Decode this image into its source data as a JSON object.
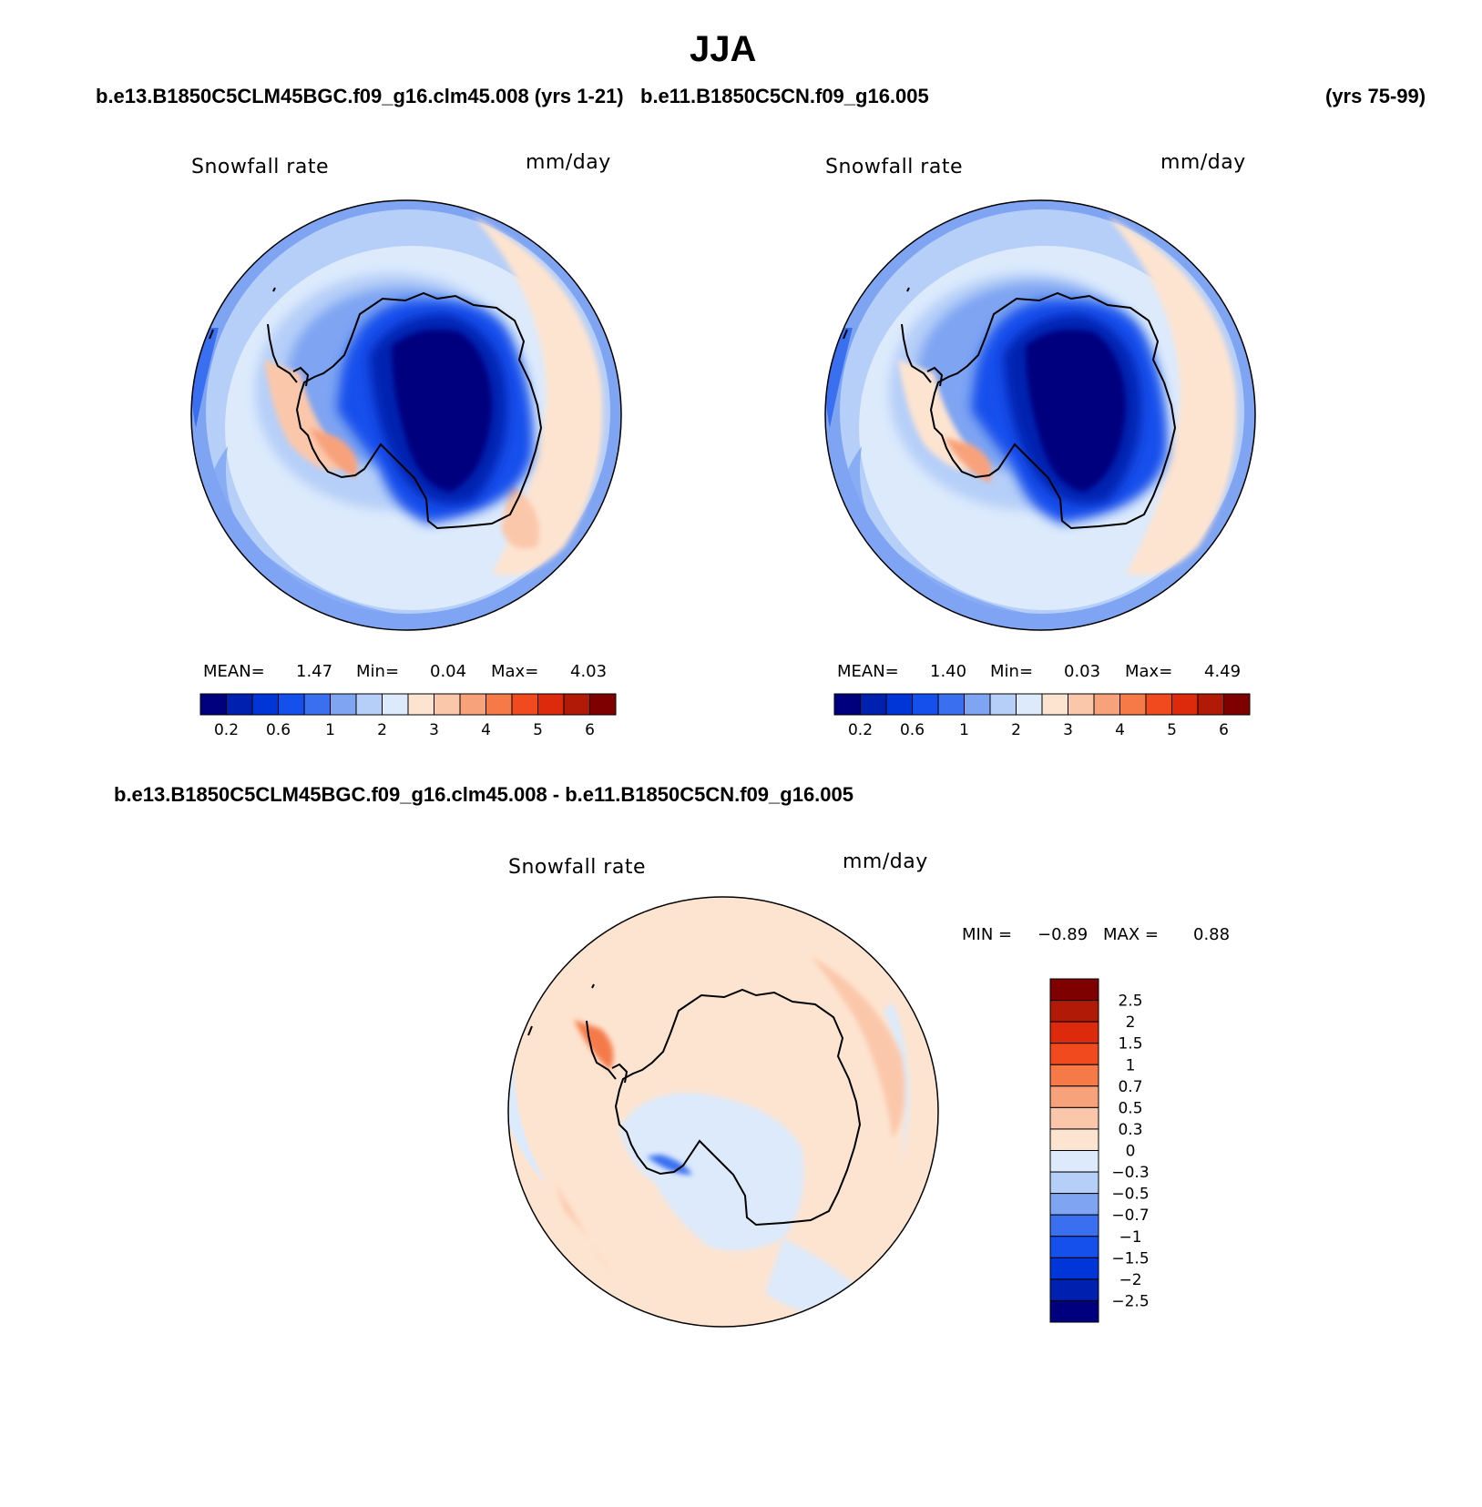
{
  "figure": {
    "title": "JJA",
    "top_left_case": "b.e13.B1850C5CLM45BGC.f09_g16.clm45.008 (yrs 1-21)",
    "top_right_case": "b.e11.B1850C5CN.f09_g16.005",
    "top_right_years": "(yrs 75-99)",
    "diff_case": "b.e13.B1850C5CLM45BGC.f09_g16.clm45.008 - b.e11.B1850C5CN.f09_g16.005"
  },
  "chart_data": [
    {
      "type": "heatmap",
      "projection": "south-polar-stereographic",
      "variable": "Snowfall rate",
      "units": "mm/day",
      "stats": {
        "mean_label": "MEAN=",
        "mean": "1.47",
        "min_label": "Min=",
        "min": "0.04",
        "max_label": "Max=",
        "max": "4.03"
      },
      "colorbar": {
        "orientation": "horizontal",
        "ticks": [
          "0.2",
          "0.6",
          "1",
          "2",
          "3",
          "4",
          "5",
          "6"
        ],
        "colors": [
          "#00007f",
          "#0020b0",
          "#0035d8",
          "#1550ec",
          "#3a70f0",
          "#7ea4f2",
          "#b6cff8",
          "#dceafc",
          "#fde4d0",
          "#fbc7ab",
          "#f8a27c",
          "#f57a48",
          "#f04a1e",
          "#dd2a0c",
          "#b01a06",
          "#7f0000"
        ]
      }
    },
    {
      "type": "heatmap",
      "projection": "south-polar-stereographic",
      "variable": "Snowfall rate",
      "units": "mm/day",
      "stats": {
        "mean_label": "MEAN=",
        "mean": "1.40",
        "min_label": "Min=",
        "min": "0.03",
        "max_label": "Max=",
        "max": "4.49"
      },
      "colorbar": {
        "orientation": "horizontal",
        "ticks": [
          "0.2",
          "0.6",
          "1",
          "2",
          "3",
          "4",
          "5",
          "6"
        ],
        "colors": [
          "#00007f",
          "#0020b0",
          "#0035d8",
          "#1550ec",
          "#3a70f0",
          "#7ea4f2",
          "#b6cff8",
          "#dceafc",
          "#fde4d0",
          "#fbc7ab",
          "#f8a27c",
          "#f57a48",
          "#f04a1e",
          "#dd2a0c",
          "#b01a06",
          "#7f0000"
        ]
      }
    },
    {
      "type": "heatmap",
      "projection": "south-polar-stereographic",
      "variable": "Snowfall rate",
      "units": "mm/day",
      "stats": {
        "min_label": "MIN =",
        "min": "−0.89",
        "max_label": "MAX =",
        "max": "0.88"
      },
      "colorbar": {
        "orientation": "vertical",
        "ticks": [
          "2.5",
          "2",
          "1.5",
          "1",
          "0.7",
          "0.5",
          "0.3",
          "0",
          "−0.3",
          "−0.5",
          "−0.7",
          "−1",
          "−1.5",
          "−2",
          "−2.5"
        ],
        "colors": [
          "#7f0000",
          "#b01a06",
          "#dd2a0c",
          "#f04a1e",
          "#f57a48",
          "#f8a27c",
          "#fbc7ab",
          "#fde4d0",
          "#dceafc",
          "#b6cff8",
          "#7ea4f2",
          "#3a70f0",
          "#1550ec",
          "#0035d8",
          "#0020b0",
          "#00007f"
        ]
      }
    }
  ]
}
